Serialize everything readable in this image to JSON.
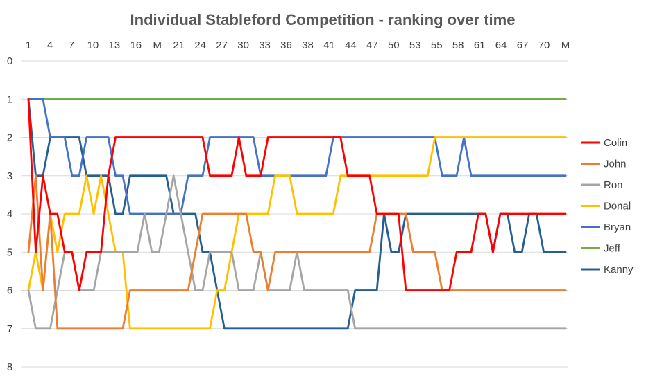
{
  "chart_data": {
    "type": "line",
    "title": "Individual Stableford Competition -  ranking over time",
    "xlabel": "",
    "ylabel": "",
    "x_tick_labels": [
      "1",
      "4",
      "7",
      "10",
      "13",
      "16",
      "M",
      "21",
      "24",
      "27",
      "30",
      "33",
      "36",
      "38",
      "41",
      "44",
      "47",
      "50",
      "53",
      "55",
      "58",
      "61",
      "64",
      "67",
      "70",
      "M"
    ],
    "ylim": [
      0,
      8
    ],
    "y_inverted": true,
    "y_ticks": [
      "0",
      "1",
      "2",
      "3",
      "4",
      "5",
      "6",
      "7",
      "8"
    ],
    "grid": "horizontal",
    "legend_position": "right",
    "point_count": 75,
    "series": [
      {
        "name": "Colin",
        "color": "#ff0000",
        "values": [
          1,
          5,
          3,
          4,
          4,
          5,
          5,
          6,
          5,
          5,
          5,
          3,
          2,
          2,
          2,
          2,
          2,
          2,
          2,
          2,
          2,
          2,
          2,
          2,
          2,
          3,
          3,
          3,
          3,
          2,
          3,
          3,
          3,
          2,
          2,
          2,
          2,
          2,
          2,
          2,
          2,
          2,
          2,
          2,
          3,
          3,
          3,
          3,
          4,
          4,
          4,
          4,
          6,
          6,
          6,
          6,
          6,
          6,
          6,
          5,
          5,
          5,
          4,
          4,
          5,
          4,
          4,
          4,
          4,
          4,
          4,
          4,
          4,
          4,
          4
        ]
      },
      {
        "name": "John",
        "color": "#ed7d31",
        "values": [
          5,
          3,
          6,
          4,
          7,
          7,
          7,
          7,
          7,
          7,
          7,
          7,
          7,
          7,
          6,
          6,
          6,
          6,
          6,
          6,
          6,
          6,
          6,
          5,
          4,
          4,
          4,
          4,
          4,
          4,
          4,
          5,
          5,
          6,
          5,
          5,
          5,
          5,
          5,
          5,
          5,
          5,
          5,
          5,
          5,
          5,
          5,
          5,
          4,
          4,
          4,
          4,
          4,
          5,
          5,
          5,
          5,
          6,
          6,
          6,
          6,
          6,
          6,
          6,
          6,
          6,
          6,
          6,
          6,
          6,
          6,
          6,
          6,
          6,
          6
        ]
      },
      {
        "name": "Ron",
        "color": "#a5a5a5",
        "values": [
          6,
          7,
          7,
          7,
          6,
          5,
          5,
          6,
          6,
          6,
          5,
          5,
          5,
          5,
          5,
          5,
          4,
          5,
          5,
          4,
          3,
          4,
          5,
          6,
          6,
          5,
          5,
          5,
          5,
          6,
          6,
          6,
          5,
          6,
          6,
          6,
          6,
          5,
          6,
          6,
          6,
          6,
          6,
          6,
          6,
          7,
          7,
          7,
          7,
          7,
          7,
          7,
          7,
          7,
          7,
          7,
          7,
          7,
          7,
          7,
          7,
          7,
          7,
          7,
          7,
          7,
          7,
          7,
          7,
          7,
          7,
          7,
          7,
          7,
          7
        ]
      },
      {
        "name": "Donal",
        "color": "#ffc000",
        "values": [
          6,
          5,
          6,
          4,
          5,
          4,
          4,
          4,
          3,
          4,
          3,
          4,
          5,
          5,
          7,
          7,
          7,
          7,
          7,
          7,
          7,
          7,
          7,
          7,
          7,
          7,
          6,
          6,
          5,
          4,
          4,
          4,
          4,
          4,
          3,
          3,
          3,
          4,
          4,
          4,
          4,
          4,
          4,
          3,
          3,
          3,
          3,
          3,
          3,
          3,
          3,
          3,
          3,
          3,
          3,
          3,
          2,
          2,
          2,
          2,
          2,
          2,
          2,
          2,
          2,
          2,
          2,
          2,
          2,
          2,
          2,
          2,
          2,
          2,
          2
        ]
      },
      {
        "name": "Bryan",
        "color": "#4472c4",
        "values": [
          1,
          1,
          1,
          2,
          2,
          2,
          3,
          3,
          2,
          2,
          2,
          2,
          3,
          3,
          4,
          4,
          4,
          4,
          4,
          4,
          4,
          4,
          3,
          3,
          3,
          2,
          2,
          2,
          2,
          2,
          2,
          2,
          3,
          3,
          3,
          3,
          3,
          3,
          3,
          3,
          3,
          3,
          2,
          2,
          2,
          2,
          2,
          2,
          2,
          2,
          2,
          2,
          2,
          2,
          2,
          2,
          2,
          3,
          3,
          3,
          2,
          3,
          3,
          3,
          3,
          3,
          3,
          3,
          3,
          3,
          3,
          3,
          3,
          3,
          3
        ]
      },
      {
        "name": "Jeff",
        "color": "#70ad47",
        "values": [
          1,
          1,
          1,
          1,
          1,
          1,
          1,
          1,
          1,
          1,
          1,
          1,
          1,
          1,
          1,
          1,
          1,
          1,
          1,
          1,
          1,
          1,
          1,
          1,
          1,
          1,
          1,
          1,
          1,
          1,
          1,
          1,
          1,
          1,
          1,
          1,
          1,
          1,
          1,
          1,
          1,
          1,
          1,
          1,
          1,
          1,
          1,
          1,
          1,
          1,
          1,
          1,
          1,
          1,
          1,
          1,
          1,
          1,
          1,
          1,
          1,
          1,
          1,
          1,
          1,
          1,
          1,
          1,
          1,
          1,
          1,
          1,
          1,
          1,
          1
        ]
      },
      {
        "name": "Kanny",
        "color": "#255e91",
        "values": [
          1,
          3,
          3,
          2,
          2,
          2,
          2,
          2,
          3,
          3,
          3,
          3,
          4,
          4,
          3,
          3,
          3,
          3,
          3,
          3,
          4,
          4,
          4,
          4,
          5,
          5,
          6,
          7,
          7,
          7,
          7,
          7,
          7,
          7,
          7,
          7,
          7,
          7,
          7,
          7,
          7,
          7,
          7,
          7,
          7,
          6,
          6,
          6,
          6,
          4,
          5,
          5,
          4,
          4,
          4,
          4,
          4,
          4,
          4,
          4,
          4,
          4,
          4,
          4,
          5,
          4,
          4,
          5,
          5,
          4,
          4,
          5,
          5,
          5,
          5
        ]
      }
    ]
  }
}
